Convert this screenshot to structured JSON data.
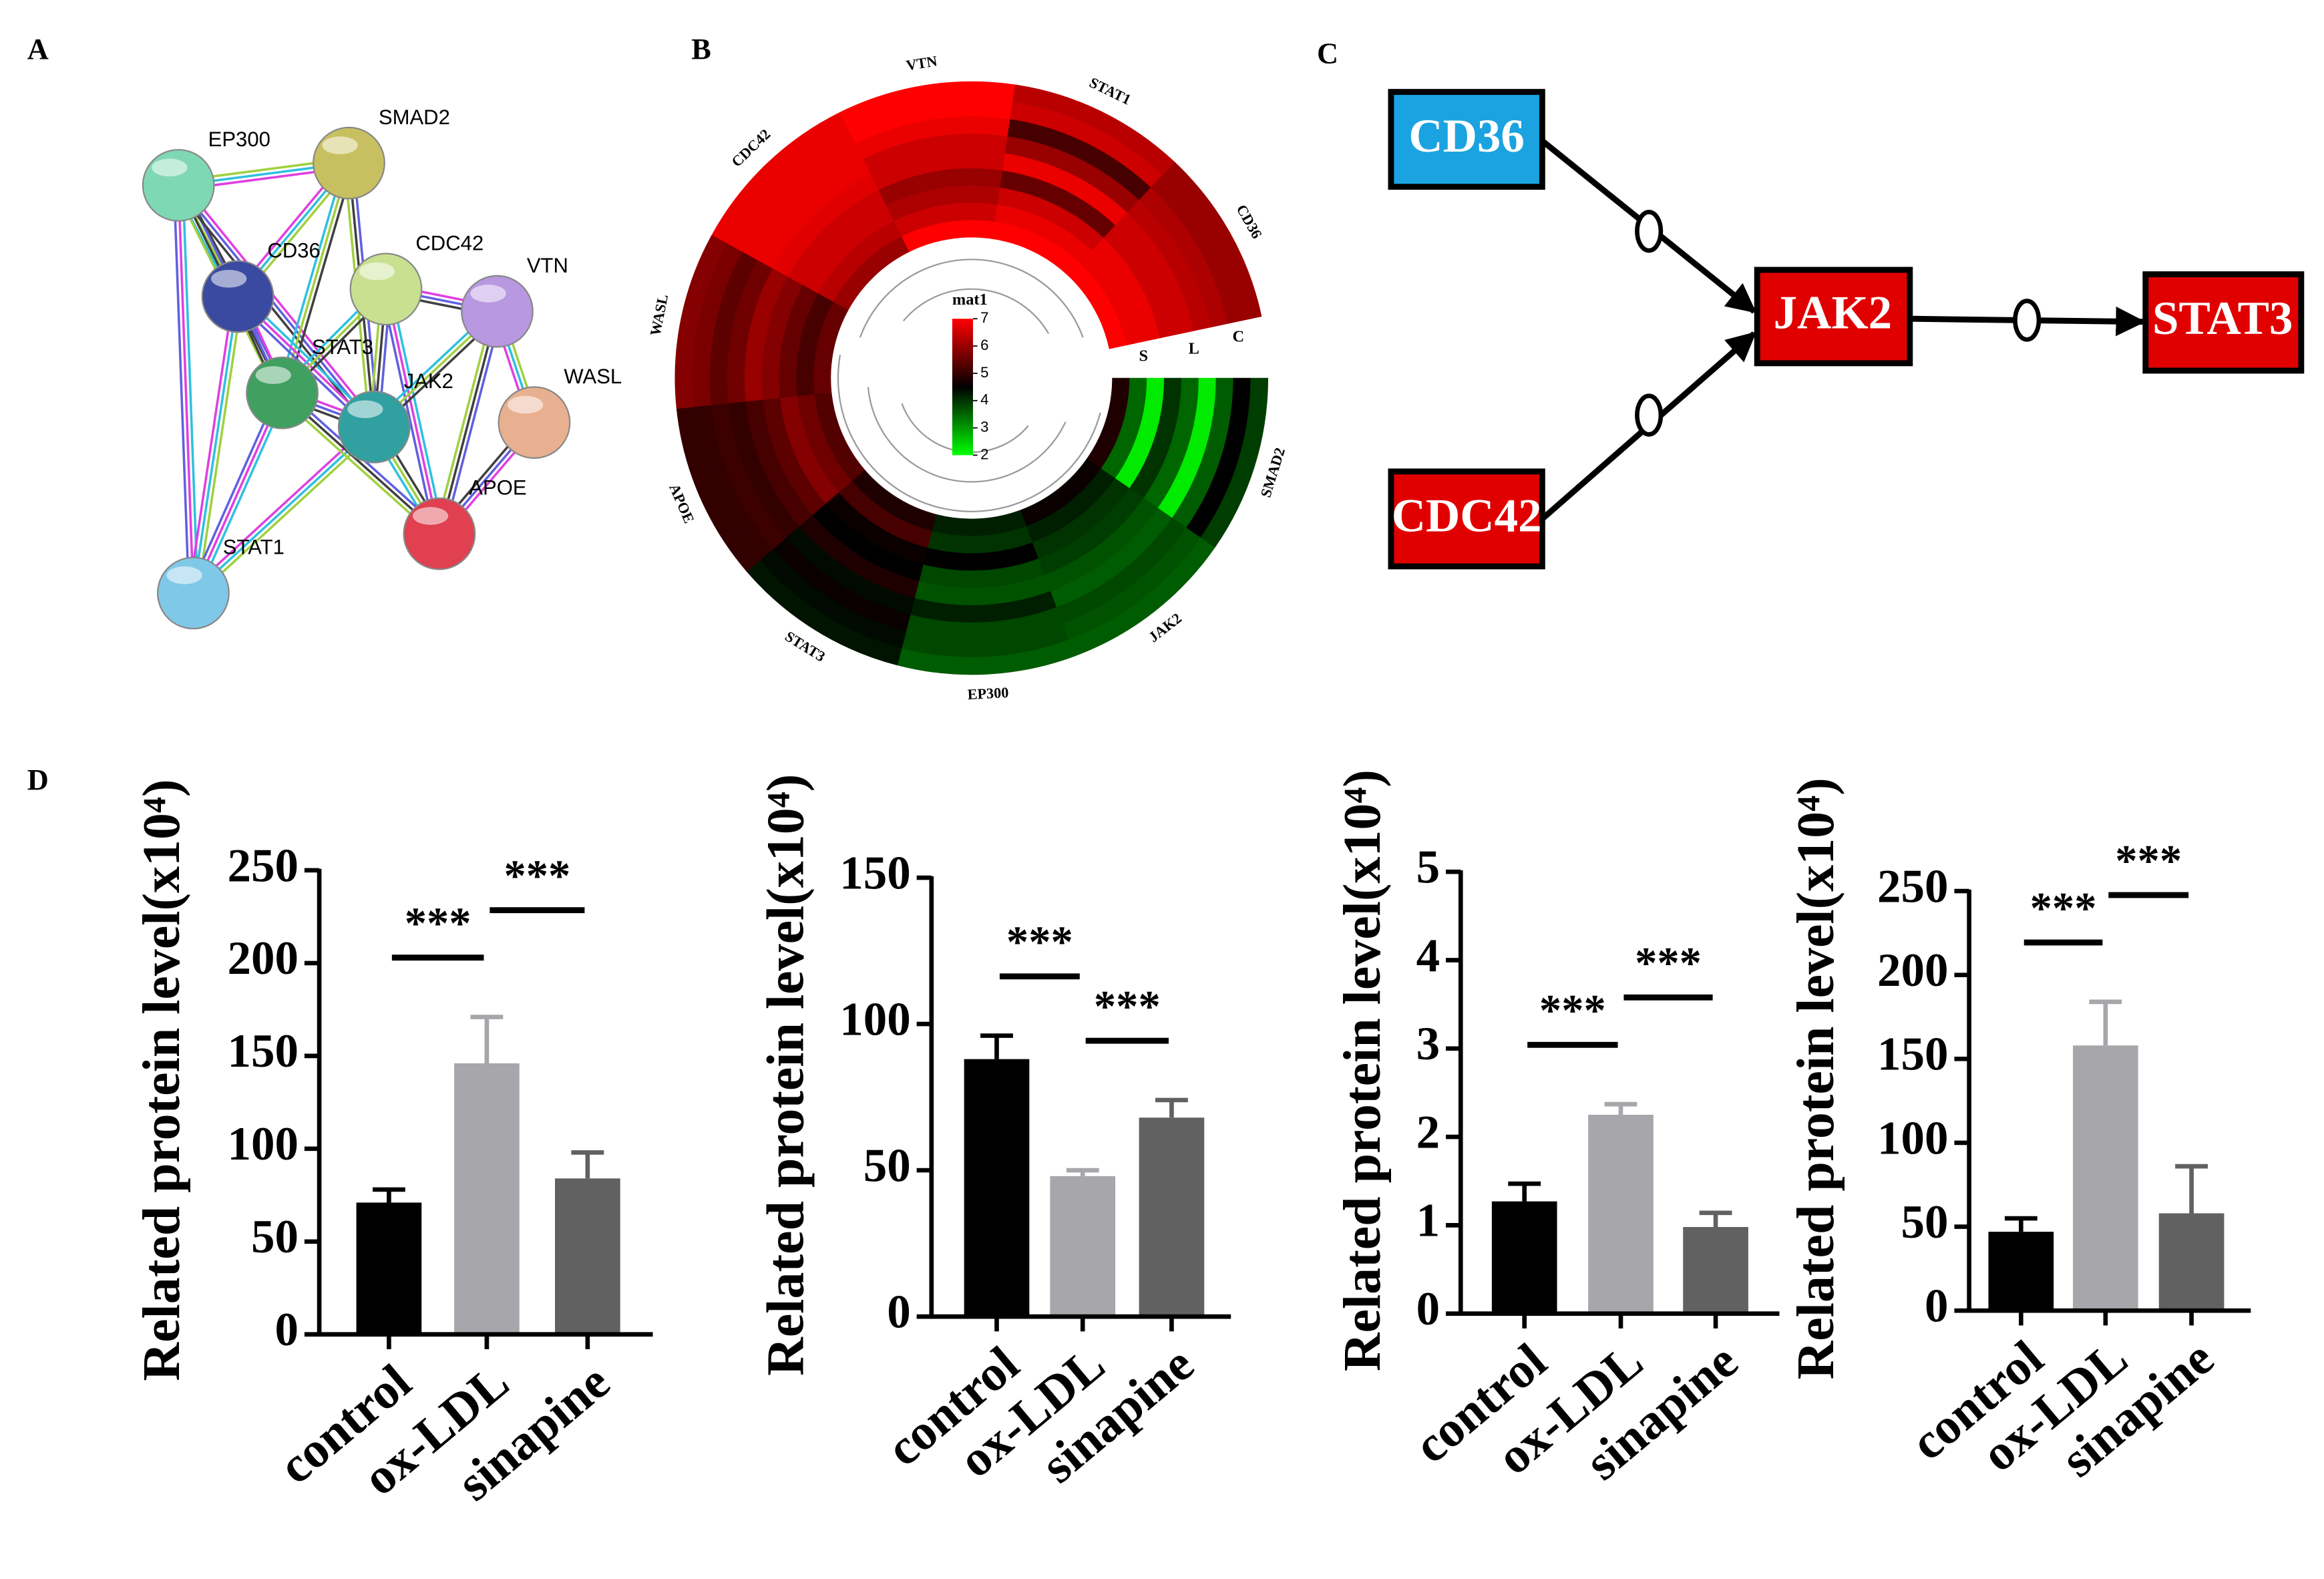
{
  "panel_labels": [
    "A",
    "B",
    "C",
    "D"
  ],
  "network": {
    "nodes": [
      "EP300",
      "SMAD2",
      "CD36",
      "CDC42",
      "VTN",
      "STAT3",
      "JAK2",
      "WASL",
      "APOE",
      "STAT1"
    ]
  },
  "pathway": {
    "nodes": [
      "CD36",
      "CDC42",
      "JAK2",
      "STAT3"
    ]
  },
  "chart_data": [
    {
      "type": "heatmap",
      "genes": [
        "CD36",
        "STAT1",
        "VTN",
        "CDC42",
        "WASL",
        "APOE",
        "STAT3",
        "EP300",
        "JAK2",
        "SMAD2"
      ],
      "groups": [
        "S",
        "L",
        "C"
      ],
      "values": [
        [
          7,
          6.8,
          6.8,
          6.5,
          6.5,
          6.3,
          6.2,
          6,
          6
        ],
        [
          7,
          6.8,
          6.5,
          5.5,
          6.8,
          6,
          5.2,
          6.5,
          6.3
        ],
        [
          7,
          6.5,
          6.2,
          6,
          6.5,
          6.5,
          6.8,
          7,
          7
        ],
        [
          6,
          6.3,
          6.5,
          6.5,
          6.7,
          6.8,
          6.8,
          6.8,
          6.8
        ],
        [
          5.5,
          5.2,
          5.5,
          5.8,
          6,
          5.6,
          5.4,
          5.7,
          5.8
        ],
        [
          5.3,
          5.6,
          5.8,
          5.4,
          5.2,
          5,
          5.1,
          5,
          5
        ],
        [
          4.8,
          5.2,
          4.6,
          4.5,
          4.8,
          4.4,
          4.6,
          4.4,
          4.3
        ],
        [
          4.2,
          4,
          4.5,
          3.8,
          3.7,
          4.2,
          3.8,
          3.8,
          3.6
        ],
        [
          4.6,
          4.2,
          4,
          3.9,
          3.7,
          3.6,
          3.8,
          3.7,
          3.6
        ],
        [
          4.8,
          3.5,
          2.2,
          4,
          3.5,
          2.2,
          3.6,
          4.5,
          3.9
        ]
      ],
      "legend_title": "mat1",
      "legend_ticks": [
        2,
        3,
        4,
        5,
        6,
        7
      ],
      "clim": [
        2,
        7
      ],
      "colors": [
        "#00ff00",
        "#000000",
        "#ff0000"
      ]
    },
    {
      "type": "bar",
      "ylabel": "Related protein level(x10⁴)",
      "categories": [
        "control",
        "ox-LDL",
        "sinapine"
      ],
      "values": [
        71,
        146,
        84
      ],
      "errors": [
        7,
        25,
        14
      ],
      "colors": [
        "#000000",
        "#a6a6ab",
        "#616161"
      ],
      "ylim": [
        0,
        250
      ],
      "yticks": [
        0,
        50,
        100,
        150,
        200,
        250
      ],
      "annotations": [
        "***",
        "***"
      ]
    },
    {
      "type": "bar",
      "ylabel": "Related protein level(x10⁴)",
      "categories": [
        "control",
        "ox-LDL",
        "sinapine"
      ],
      "values": [
        88,
        48,
        68
      ],
      "errors": [
        8,
        2,
        6
      ],
      "colors": [
        "#000000",
        "#a6a6ab",
        "#616161"
      ],
      "ylim": [
        0,
        150
      ],
      "yticks": [
        0,
        50,
        100,
        150
      ],
      "annotations": [
        "***",
        "***"
      ]
    },
    {
      "type": "bar",
      "ylabel": "Related protein level(x10⁴)",
      "categories": [
        "control",
        "ox-LDL",
        "sinapine"
      ],
      "values": [
        1.27,
        2.25,
        0.98
      ],
      "errors": [
        0.2,
        0.12,
        0.16
      ],
      "colors": [
        "#000000",
        "#a6a6ab",
        "#616161"
      ],
      "ylim": [
        0,
        5
      ],
      "yticks": [
        0,
        1,
        2,
        3,
        4,
        5
      ],
      "annotations": [
        "***",
        "***"
      ]
    },
    {
      "type": "bar",
      "ylabel": "Related protein level(x10⁴)",
      "categories": [
        "control",
        "ox-LDL",
        "sinapine"
      ],
      "values": [
        47,
        158,
        58
      ],
      "errors": [
        8,
        26,
        28
      ],
      "colors": [
        "#000000",
        "#a6a6ab",
        "#616161"
      ],
      "ylim": [
        0,
        250
      ],
      "yticks": [
        0,
        50,
        100,
        150,
        200,
        250
      ],
      "annotations": [
        "***",
        "***"
      ]
    }
  ]
}
